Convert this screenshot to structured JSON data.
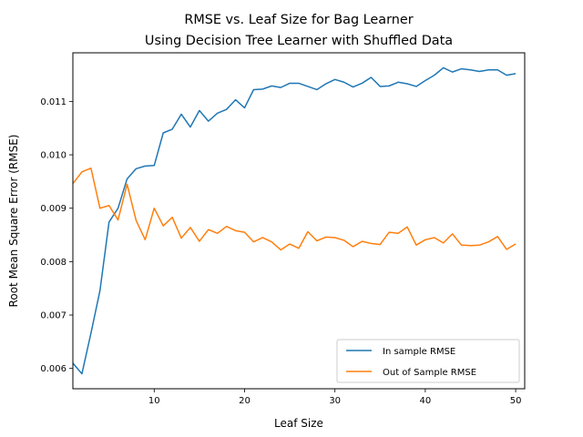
{
  "chart_data": {
    "type": "line",
    "title_lines": [
      "RMSE vs. Leaf Size for Bag Learner",
      "Using Decision Tree Learner with Shuffled Data"
    ],
    "xlabel": "Leaf Size",
    "ylabel": "Root Mean Square Error (RMSE)",
    "xlim": [
      1,
      51
    ],
    "ylim": [
      0.00562,
      0.01191
    ],
    "x_ticks": [
      10,
      20,
      30,
      40,
      50
    ],
    "y_ticks": [
      0.006,
      0.007,
      0.008,
      0.009,
      0.01,
      0.011
    ],
    "x_tick_labels": [
      "10",
      "20",
      "30",
      "40",
      "50"
    ],
    "y_tick_labels": [
      "0.006",
      "0.007",
      "0.008",
      "0.009",
      "0.010",
      "0.011"
    ],
    "legend_position": "lower-right",
    "grid": false,
    "x": [
      1,
      2,
      3,
      4,
      5,
      6,
      7,
      8,
      9,
      10,
      11,
      12,
      13,
      14,
      15,
      16,
      17,
      18,
      19,
      20,
      21,
      22,
      23,
      24,
      25,
      26,
      27,
      28,
      29,
      30,
      31,
      32,
      33,
      34,
      35,
      36,
      37,
      38,
      39,
      40,
      41,
      42,
      43,
      44,
      45,
      46,
      47,
      48,
      49,
      50
    ],
    "series": [
      {
        "name": "In sample RMSE",
        "color": "#1f77b4",
        "values": [
          0.0061,
          0.0059,
          0.00666,
          0.00746,
          0.00874,
          0.009,
          0.00955,
          0.00974,
          0.00979,
          0.0098,
          0.01041,
          0.01048,
          0.01076,
          0.01052,
          0.01083,
          0.01063,
          0.01078,
          0.01085,
          0.01103,
          0.01088,
          0.01122,
          0.01123,
          0.01129,
          0.01126,
          0.01134,
          0.01134,
          0.01128,
          0.01122,
          0.01133,
          0.01141,
          0.01136,
          0.01127,
          0.01134,
          0.01145,
          0.01128,
          0.01129,
          0.01136,
          0.01133,
          0.01128,
          0.01139,
          0.01149,
          0.01163,
          0.01155,
          0.01161,
          0.01159,
          0.01156,
          0.01159,
          0.01159,
          0.01149,
          0.01152
        ]
      },
      {
        "name": "Out of Sample RMSE",
        "color": "#ff7f0e",
        "values": [
          0.00946,
          0.00968,
          0.00975,
          0.009,
          0.00905,
          0.00878,
          0.00945,
          0.00877,
          0.00841,
          0.009,
          0.00867,
          0.00883,
          0.00844,
          0.00864,
          0.00838,
          0.0086,
          0.00853,
          0.00866,
          0.00858,
          0.00855,
          0.00837,
          0.00845,
          0.00837,
          0.00822,
          0.00833,
          0.00825,
          0.00856,
          0.00839,
          0.00846,
          0.00845,
          0.0084,
          0.00828,
          0.00838,
          0.00834,
          0.00832,
          0.00855,
          0.00853,
          0.00865,
          0.00831,
          0.00841,
          0.00845,
          0.00835,
          0.00852,
          0.00831,
          0.0083,
          0.00831,
          0.00837,
          0.00847,
          0.00823,
          0.00833
        ]
      }
    ]
  }
}
